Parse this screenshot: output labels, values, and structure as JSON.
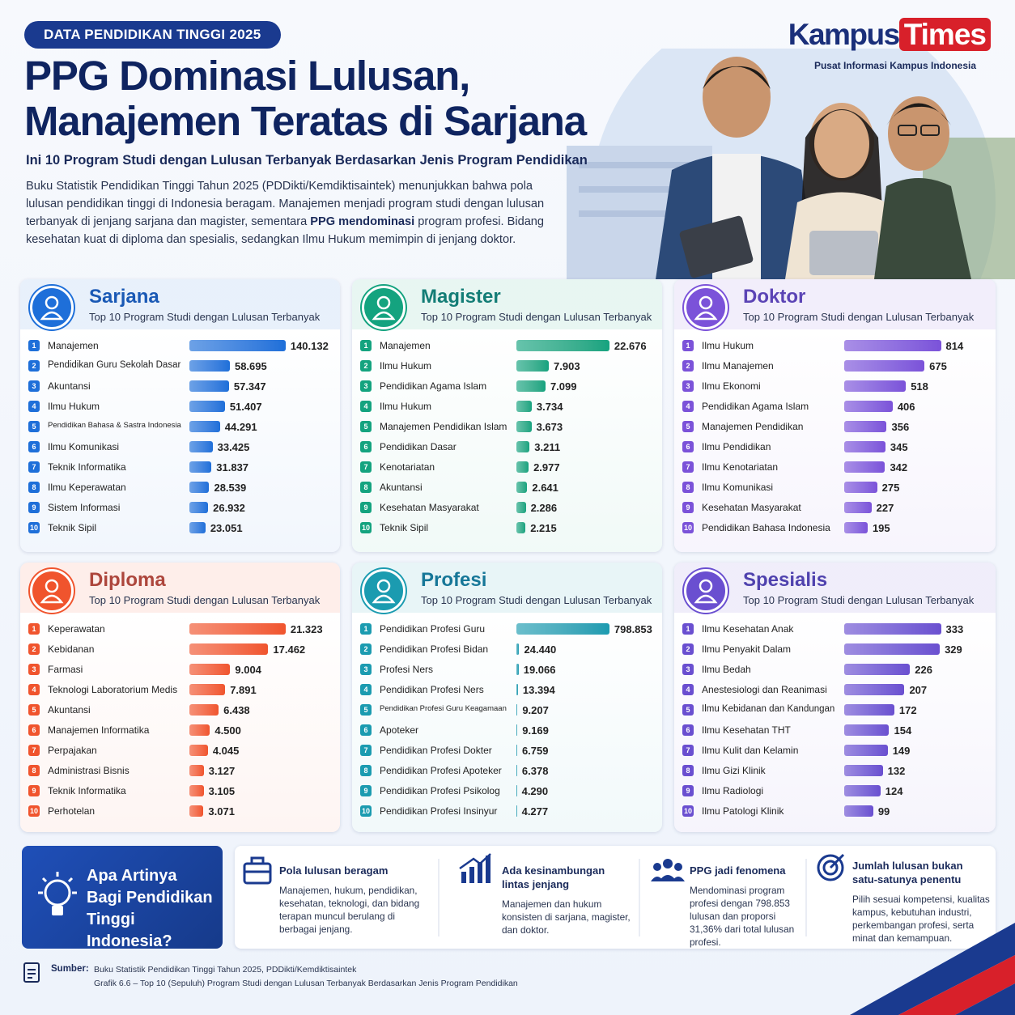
{
  "header": {
    "badge": "DATA PENDIDIKAN TINGGI 2025",
    "title_lines": [
      "PPG Dominasi Lulusan,",
      "Manajemen Teratas di Sarjana"
    ],
    "subtitle": "Ini 10 Program Studi dengan Lulusan Terbanyak Berdasarkan Jenis Program Pendidikan",
    "paragraph": [
      "Buku Statistik Pendidikan Tinggi Tahun 2025 (PDDikti/Kemdiktisaintek) menunjukkan bahwa pola lulusan pendidikan tinggi di Indonesia beragam. Manajemen menjadi program studi dengan lulusan terbanyak di jenjang sarjana dan magister, sementara ",
      "PPG mendominasi",
      " program profesi. Bidang kesehatan kuat di diploma dan spesialis, sedangkan Ilmu Hukum memimpin di jenjang doktor."
    ],
    "logo": {
      "left": "Kampus",
      "right": "Times",
      "tagline": "Pusat Informasi Kampus Indonesia"
    }
  },
  "ranks": [
    1,
    2,
    3,
    4,
    5,
    6,
    7,
    8,
    9,
    10
  ],
  "chart_data": [
    {
      "type": "bar",
      "orientation": "horizontal",
      "title": "Sarjana",
      "subtitle": "Top 10 Program Studi dengan Lulusan Terbanyak",
      "color": "#1e6fd9",
      "categories": [
        "Manajemen",
        "Pendidikan Guru Sekolah Dasar",
        "Akuntansi",
        "Ilmu Hukum",
        "Pendidikan Bahasa & Sastra Indonesia",
        "Ilmu Komunikasi",
        "Teknik Informatika",
        "Ilmu Keperawatan",
        "Sistem Informasi",
        "Teknik Sipil"
      ],
      "values": [
        140132,
        58695,
        57347,
        51407,
        44291,
        33425,
        31837,
        28539,
        26932,
        23051
      ],
      "value_labels": [
        "140.132",
        "58.695",
        "57.347",
        "51.407",
        "44.291",
        "33.425",
        "31.837",
        "28.539",
        "26.932",
        "23.051"
      ]
    },
    {
      "type": "bar",
      "orientation": "horizontal",
      "title": "Magister",
      "subtitle": "Top 10 Program Studi dengan Lulusan Terbanyak",
      "color": "#14a37f",
      "categories": [
        "Manajemen",
        "Ilmu Hukum",
        "Pendidikan Agama Islam",
        "Ilmu Hukum",
        "Manajemen Pendidikan Islam",
        "Pendidikan Dasar",
        "Kenotariatan",
        "Akuntansi",
        "Kesehatan Masyarakat",
        "Teknik Sipil"
      ],
      "values": [
        22676,
        7903,
        7099,
        3734,
        3673,
        3211,
        2977,
        2641,
        2286,
        2215
      ],
      "value_labels": [
        "22.676",
        "7.903",
        "7.099",
        "3.734",
        "3.673",
        "3.211",
        "2.977",
        "2.641",
        "2.286",
        "2.215"
      ]
    },
    {
      "type": "bar",
      "orientation": "horizontal",
      "title": "Doktor",
      "subtitle": "Top 10 Program Studi dengan Lulusan Terbanyak",
      "color": "#7b52d9",
      "categories": [
        "Ilmu Hukum",
        "Ilmu Manajemen",
        "Ilmu Ekonomi",
        "Pendidikan Agama Islam",
        "Manajemen Pendidikan",
        "Ilmu Pendidikan",
        "Ilmu Kenotariatan",
        "Ilmu Komunikasi",
        "Kesehatan Masyarakat",
        "Pendidikan Bahasa Indonesia"
      ],
      "values": [
        814,
        675,
        518,
        406,
        356,
        345,
        342,
        275,
        227,
        195
      ]
    },
    {
      "type": "bar",
      "orientation": "horizontal",
      "title": "Diploma",
      "subtitle": "Top 10 Program Studi dengan Lulusan Terbanyak",
      "color": "#f0542d",
      "categories": [
        "Keperawatan",
        "Kebidanan",
        "Farmasi",
        "Teknologi Laboratorium Medis",
        "Akuntansi",
        "Manajemen Informatika",
        "Perpajakan",
        "Administrasi Bisnis",
        "Teknik Informatika",
        "Perhotelan"
      ],
      "values": [
        21323,
        17462,
        9004,
        7891,
        6438,
        4500,
        4045,
        3127,
        3105,
        3071
      ],
      "value_labels": [
        "21.323",
        "17.462",
        "9.004",
        "7.891",
        "6.438",
        "4.500",
        "4.045",
        "3.127",
        "3.105",
        "3.071"
      ]
    },
    {
      "type": "bar",
      "orientation": "horizontal",
      "title": "Profesi",
      "subtitle": "Top 10 Program Studi dengan Lulusan Terbanyak",
      "color": "#1b9bb0",
      "categories": [
        "Pendidikan Profesi Guru",
        "Pendidikan Profesi Bidan",
        "Profesi Ners",
        "Pendidikan Profesi Ners",
        "Pendidikan Profesi Guru Keagamaan",
        "Apoteker",
        "Pendidikan Profesi Dokter",
        "Pendidikan Profesi Apoteker",
        "Pendidikan Profesi Psikolog",
        "Pendidikan Profesi Insinyur"
      ],
      "values": [
        798853,
        24440,
        19066,
        13394,
        9207,
        9169,
        6759,
        6378,
        4290,
        4277
      ],
      "value_labels": [
        "798.853",
        "24.440",
        "19.066",
        "13.394",
        "9.207",
        "9.169",
        "6.759",
        "6.378",
        "4.290",
        "4.277"
      ]
    },
    {
      "type": "bar",
      "orientation": "horizontal",
      "title": "Spesialis",
      "subtitle": "Top 10 Program Studi dengan Lulusan Terbanyak",
      "color": "#6a4fd0",
      "categories": [
        "Ilmu Kesehatan Anak",
        "Ilmu Penyakit Dalam",
        "Ilmu Bedah",
        "Anestesiologi dan Reanimasi",
        "Ilmu Kebidanan dan Kandungan",
        "Ilmu Kesehatan THT",
        "Ilmu Kulit dan Kelamin",
        "Ilmu Gizi Klinik",
        "Ilmu Radiologi",
        "Ilmu Patologi Klinik"
      ],
      "values": [
        333,
        329,
        226,
        207,
        172,
        154,
        149,
        132,
        124,
        99
      ]
    }
  ],
  "insights": {
    "heading": "Apa Artinya Bagi Pendidikan Tinggi Indonesia?",
    "items": [
      {
        "title": "Pola lulusan beragam",
        "body": "Manajemen, hukum, pendidikan, kesehatan, teknologi, dan bidang terapan muncul berulang di berbagai jenjang."
      },
      {
        "title": "Ada kesinambungan lintas jenjang",
        "body": "Manajemen dan hukum konsisten di sarjana, magister, dan doktor."
      },
      {
        "title": "PPG jadi fenomena",
        "body": "Mendominasi program profesi dengan 798.853 lulusan dan proporsi 31,36% dari total lulusan profesi."
      },
      {
        "title": "Jumlah lulusan bukan satu-satunya penentu",
        "body": "Pilih sesuai kompetensi, kualitas kampus, kebutuhan industri, perkembangan profesi, serta minat dan kemampuan."
      }
    ]
  },
  "source": {
    "label": "Sumber:",
    "lines": [
      "Buku Statistik Pendidikan Tinggi Tahun 2025, PDDikti/Kemdiktisaintek",
      "Grafik 6.6 – Top 10 (Sepuluh) Program Studi dengan Lulusan Terbanyak Berdasarkan Jenis Program Pendidikan"
    ]
  }
}
